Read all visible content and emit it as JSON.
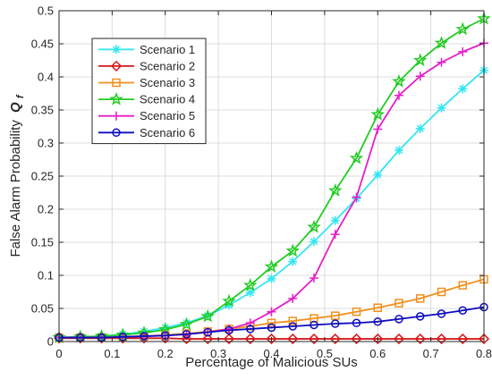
{
  "chart_data": {
    "type": "line",
    "title": "",
    "xlabel": "Percentage of Malicious SUs",
    "ylabel": "False Alarm Probability",
    "ylabel_math": "Q",
    "ylabel_math_sub": "f",
    "xlim": [
      0,
      0.8
    ],
    "ylim": [
      0,
      0.5
    ],
    "x_ticks": [
      0,
      0.1,
      0.2,
      0.3,
      0.4,
      0.5,
      0.6,
      0.7,
      0.8
    ],
    "x_tick_labels": [
      "0",
      "0.1",
      "0.2",
      "0.3",
      "0.4",
      "0.5",
      "0.6",
      "0.7",
      "0.8"
    ],
    "y_ticks": [
      0,
      0.05,
      0.1,
      0.15,
      0.2,
      0.25,
      0.3,
      0.35,
      0.4,
      0.45,
      0.5
    ],
    "y_tick_labels": [
      "0",
      "0.05",
      "0.1",
      "0.15",
      "0.2",
      "0.25",
      "0.3",
      "0.35",
      "0.4",
      "0.45",
      "0.5"
    ],
    "grid": true,
    "legend_position": "top-left",
    "x": [
      0,
      0.04,
      0.08,
      0.12,
      0.16,
      0.2,
      0.24,
      0.28,
      0.32,
      0.36,
      0.4,
      0.44,
      0.48,
      0.52,
      0.56,
      0.6,
      0.64,
      0.68,
      0.72,
      0.76,
      0.8
    ],
    "series": [
      {
        "name": "Scenario 1",
        "color": "#33e6f2",
        "marker": "asterisk",
        "values": [
          0.006,
          0.007,
          0.008,
          0.011,
          0.015,
          0.021,
          0.028,
          0.039,
          0.055,
          0.074,
          0.095,
          0.121,
          0.151,
          0.183,
          0.216,
          0.252,
          0.289,
          0.322,
          0.353,
          0.382,
          0.41
        ]
      },
      {
        "name": "Scenario 2",
        "color": "#d41a1a",
        "marker": "diamond",
        "values": [
          0.005,
          0.005,
          0.005,
          0.005,
          0.005,
          0.005,
          0.004,
          0.004,
          0.004,
          0.004,
          0.004,
          0.004,
          0.004,
          0.004,
          0.004,
          0.004,
          0.004,
          0.004,
          0.004,
          0.004,
          0.004
        ]
      },
      {
        "name": "Scenario 3",
        "color": "#f0901c",
        "marker": "square",
        "values": [
          0.006,
          0.006,
          0.006,
          0.007,
          0.008,
          0.01,
          0.012,
          0.015,
          0.019,
          0.023,
          0.028,
          0.031,
          0.035,
          0.039,
          0.045,
          0.051,
          0.058,
          0.065,
          0.075,
          0.085,
          0.094
        ]
      },
      {
        "name": "Scenario 4",
        "color": "#22cc22",
        "marker": "star",
        "values": [
          0.006,
          0.007,
          0.008,
          0.01,
          0.013,
          0.018,
          0.026,
          0.038,
          0.061,
          0.085,
          0.113,
          0.137,
          0.173,
          0.228,
          0.277,
          0.343,
          0.393,
          0.425,
          0.451,
          0.472,
          0.488
        ]
      },
      {
        "name": "Scenario 5",
        "color": "#e61ecc",
        "marker": "plus",
        "values": [
          0.006,
          0.006,
          0.006,
          0.007,
          0.008,
          0.009,
          0.011,
          0.014,
          0.019,
          0.028,
          0.045,
          0.065,
          0.096,
          0.162,
          0.218,
          0.321,
          0.372,
          0.401,
          0.422,
          0.438,
          0.451
        ]
      },
      {
        "name": "Scenario 6",
        "color": "#0d0dbf",
        "marker": "circle",
        "values": [
          0.006,
          0.006,
          0.006,
          0.007,
          0.008,
          0.009,
          0.011,
          0.014,
          0.017,
          0.019,
          0.021,
          0.023,
          0.025,
          0.027,
          0.028,
          0.03,
          0.034,
          0.038,
          0.042,
          0.047,
          0.052
        ]
      }
    ]
  }
}
